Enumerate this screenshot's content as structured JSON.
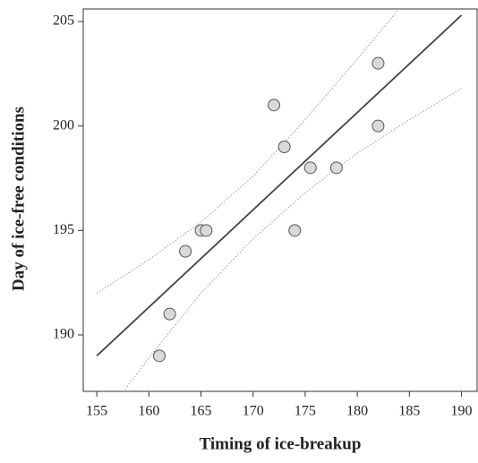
{
  "chart_data": {
    "type": "scatter",
    "x_label": "Timing of ice-breakup",
    "y_label": "Day of ice-free conditions",
    "x": [
      161,
      162,
      163.5,
      165,
      165.5,
      172,
      173,
      174,
      175.5,
      178,
      182,
      182
    ],
    "y": [
      189,
      191,
      194,
      195,
      195,
      201,
      199,
      195,
      198,
      198,
      203,
      200
    ],
    "color": "#d9d9d9",
    "edge_color": "#555555",
    "fit_line": {
      "x": [
        155,
        190
      ],
      "y": [
        189,
        205.3
      ],
      "color": "#444444"
    },
    "ci_upper": {
      "x": [
        155,
        160,
        165,
        170,
        175,
        180,
        185
      ],
      "y": [
        192.0,
        193.6,
        195.4,
        197.6,
        200.3,
        203.2,
        206.2
      ],
      "color": "#999999"
    },
    "ci_lower": {
      "x": [
        155,
        160,
        165,
        170,
        175,
        180,
        185,
        190
      ],
      "y": [
        185.6,
        188.9,
        192.0,
        194.6,
        196.8,
        198.7,
        200.3,
        201.8
      ],
      "color": "#999999"
    },
    "xlim": [
      153.7,
      191.5
    ],
    "ylim": [
      187.3,
      205.6
    ],
    "xticks": [
      155,
      160,
      165,
      170,
      175,
      180,
      185,
      190
    ],
    "yticks": [
      190,
      195,
      200,
      205
    ]
  }
}
